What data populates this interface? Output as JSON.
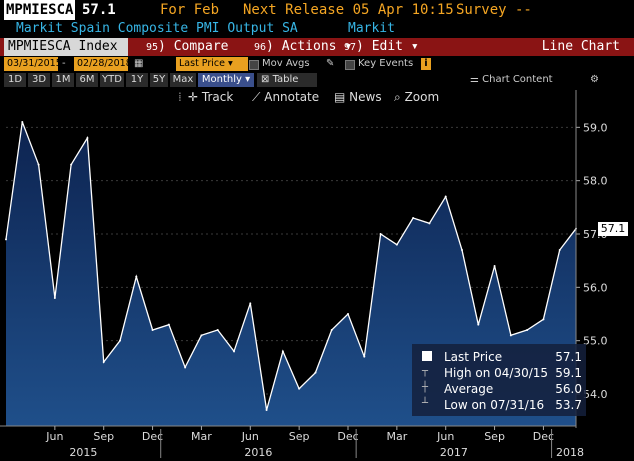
{
  "header": {
    "ticker": "MPMIESCA",
    "last": "57.1",
    "for_label": "For Feb",
    "next_release": "Next Release 05 Apr 10:15",
    "survey": "Survey --",
    "security_name": "Markit Spain Composite PMI Output SA",
    "source": "Markit"
  },
  "toolbar": {
    "index": "MPMIESCA Index",
    "compare_num": "95",
    "compare": "Compare",
    "actions_num": "96",
    "actions": "Actions",
    "edit_num": "97",
    "edit": "Edit",
    "chart_type": "Line Chart"
  },
  "controls": {
    "start_date": "03/31/2015",
    "end_date": "02/28/2018",
    "field": "Last Price",
    "mov_avgs": "Mov Avgs",
    "key_events": "Key Events",
    "info": "i",
    "chart_content": "Chart Content"
  },
  "periods": [
    "1D",
    "3D",
    "1M",
    "6M",
    "YTD",
    "1Y",
    "5Y",
    "Max"
  ],
  "frequency": "Monthly",
  "table_label": "Table",
  "tools": {
    "track": "Track",
    "annotate": "Annotate",
    "news": "News",
    "zoom": "Zoom"
  },
  "legend": {
    "last_price_label": "Last Price",
    "last_price_value": "57.1",
    "high_label": "High on 04/30/15",
    "high_value": "59.1",
    "average_label": "Average",
    "average_value": "56.0",
    "low_label": "Low on 07/31/16",
    "low_value": "53.7"
  },
  "current_tag": "57.1",
  "colors": {
    "line": "#ffffff",
    "fill_top": "#0d2350",
    "fill_bottom": "#1f4f8a",
    "accent_orange": "#f5a623",
    "toolbar_red": "#8a1414",
    "name_blue": "#37b6e6"
  },
  "chart_data": {
    "type": "area",
    "x": [
      "2015-03",
      "2015-04",
      "2015-05",
      "2015-06",
      "2015-07",
      "2015-08",
      "2015-09",
      "2015-10",
      "2015-11",
      "2015-12",
      "2016-01",
      "2016-02",
      "2016-03",
      "2016-04",
      "2016-05",
      "2016-06",
      "2016-07",
      "2016-08",
      "2016-09",
      "2016-10",
      "2016-11",
      "2016-12",
      "2017-01",
      "2017-02",
      "2017-03",
      "2017-04",
      "2017-05",
      "2017-06",
      "2017-07",
      "2017-08",
      "2017-09",
      "2017-10",
      "2017-11",
      "2017-12",
      "2018-01",
      "2018-02"
    ],
    "values": [
      56.9,
      59.1,
      58.3,
      55.8,
      58.3,
      58.8,
      54.6,
      55.0,
      56.2,
      55.2,
      55.3,
      54.5,
      55.1,
      55.2,
      54.8,
      55.7,
      53.7,
      54.8,
      54.1,
      54.4,
      55.2,
      55.5,
      54.7,
      57.0,
      56.8,
      57.3,
      57.2,
      57.7,
      56.7,
      55.3,
      56.4,
      55.1,
      55.2,
      55.4,
      56.7,
      57.1
    ],
    "ylim": [
      53.4,
      59.4
    ],
    "y_ticks": [
      "54.0",
      "55.0",
      "56.0",
      "57.0",
      "58.0",
      "59.0"
    ],
    "month_labels": [
      "Jun",
      "Sep",
      "Dec",
      "Mar",
      "Jun",
      "Sep",
      "Dec",
      "Mar",
      "Jun",
      "Sep",
      "Dec"
    ],
    "year_labels": [
      "2015",
      "2016",
      "2017",
      "2018"
    ],
    "grid": true
  }
}
